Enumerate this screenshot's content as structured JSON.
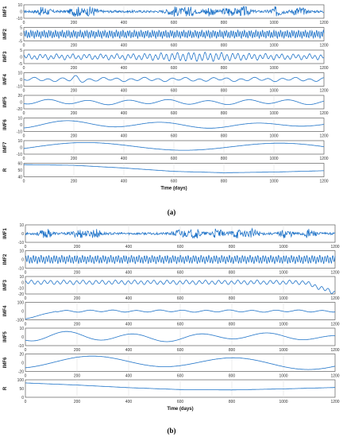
{
  "figure_labels": {
    "a": "(a)",
    "b": "(b)"
  },
  "colors": {
    "line": "#1f73c8",
    "grid": "#e3e3e3",
    "axis": "#444444"
  },
  "chart_data": [
    {
      "type": "line",
      "panel": "a",
      "xlabel": "Time (days)",
      "xlim": [
        0,
        1200
      ],
      "xticks": [
        0,
        200,
        400,
        600,
        800,
        1000,
        1200
      ],
      "grid": true,
      "subplots": [
        {
          "name": "IMF1",
          "ylim": [
            -10,
            10
          ],
          "yticks": [
            -10,
            0,
            10
          ],
          "kind": "noise",
          "amp": 7,
          "wl": 3,
          "env": "bursty",
          "trend": null
        },
        {
          "name": "IMF2",
          "ylim": [
            -5,
            5
          ],
          "yticks": [
            -5,
            0,
            5
          ],
          "kind": "osc",
          "amp": 2.5,
          "wl": 9,
          "env": "flat",
          "trend": null
        },
        {
          "name": "IMF3",
          "ylim": [
            -5,
            5
          ],
          "yticks": [
            -5,
            0,
            5
          ],
          "kind": "osc",
          "amp": 2.5,
          "wl": 22,
          "env": "mid",
          "trend": null
        },
        {
          "name": "IMF4",
          "ylim": [
            -10,
            10
          ],
          "yticks": [
            -10,
            0,
            10
          ],
          "kind": "osc",
          "amp": 4,
          "wl": 55,
          "env": "spike200",
          "trend": null
        },
        {
          "name": "IMF5",
          "ylim": [
            -20,
            20
          ],
          "yticks": [
            -20,
            0,
            20
          ],
          "kind": "osc",
          "amp": 6,
          "wl": 160,
          "env": "flat",
          "trend": null
        },
        {
          "name": "IMF6",
          "ylim": [
            -10,
            10
          ],
          "yticks": [
            -10,
            0,
            10
          ],
          "kind": "osc",
          "amp": 5,
          "wl": 380,
          "env": "decay",
          "trend": null
        },
        {
          "name": "IMF7",
          "ylim": [
            -10,
            10
          ],
          "yticks": [
            -10,
            0,
            10
          ],
          "kind": "osc",
          "amp": 6,
          "wl": 800,
          "env": "flat",
          "trend": null
        },
        {
          "name": "R",
          "ylim": [
            40,
            60
          ],
          "yticks": [
            40,
            50,
            60
          ],
          "kind": "trend",
          "trend": [
            58,
            57,
            53,
            48,
            46,
            47,
            49
          ]
        }
      ]
    },
    {
      "type": "line",
      "panel": "b",
      "xlabel": "Time (days)",
      "xlim": [
        0,
        1200
      ],
      "xticks": [
        0,
        200,
        400,
        600,
        800,
        1000,
        1200
      ],
      "grid": true,
      "subplots": [
        {
          "name": "IMF1",
          "ylim": [
            -10,
            10
          ],
          "yticks": [
            -10,
            0,
            10
          ],
          "kind": "noise",
          "amp": 5,
          "wl": 3,
          "env": "bursty",
          "trend": null
        },
        {
          "name": "IMF2",
          "ylim": [
            -10,
            10
          ],
          "yticks": [
            -10,
            0,
            10
          ],
          "kind": "osc",
          "amp": 4,
          "wl": 10,
          "env": "flat",
          "trend": null
        },
        {
          "name": "IMF3",
          "ylim": [
            -20,
            10
          ],
          "yticks": [
            -20,
            -10,
            0,
            10
          ],
          "kind": "osc",
          "amp": 3,
          "wl": 25,
          "env": "enddrop",
          "trend": null
        },
        {
          "name": "IMF4",
          "ylim": [
            -100,
            100
          ],
          "yticks": [
            -100,
            0,
            100
          ],
          "kind": "osc",
          "amp": 10,
          "wl": 90,
          "env": "startlow",
          "trend": null
        },
        {
          "name": "IMF5",
          "ylim": [
            -10,
            10
          ],
          "yticks": [
            -10,
            0,
            10
          ],
          "kind": "osc",
          "amp": 5,
          "wl": 260,
          "env": "decay",
          "trend": null
        },
        {
          "name": "IMF6",
          "ylim": [
            -20,
            20
          ],
          "yticks": [
            -20,
            0,
            20
          ],
          "kind": "osc",
          "amp": 12,
          "wl": 560,
          "env": "flat",
          "trend": null
        },
        {
          "name": "R",
          "ylim": [
            0,
            100
          ],
          "yticks": [
            0,
            50,
            100
          ],
          "kind": "trend",
          "trend": [
            82,
            70,
            55,
            44,
            42,
            48,
            56
          ]
        }
      ]
    }
  ]
}
